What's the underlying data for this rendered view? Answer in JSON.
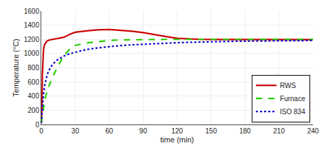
{
  "chart_data": {
    "type": "line",
    "xlabel": "time (min)",
    "ylabel": "Temperature (°C)",
    "xlim": [
      0,
      240
    ],
    "ylim": [
      0,
      1600
    ],
    "xticks": [
      0,
      30,
      60,
      90,
      120,
      150,
      180,
      210,
      240
    ],
    "yticks": [
      0,
      200,
      400,
      600,
      800,
      1000,
      1200,
      1400,
      1600
    ],
    "grid": true,
    "legend": "lower right",
    "series": [
      {
        "name": "RWS",
        "color": "#cc0000",
        "line_style": "solid",
        "x": [
          0,
          0.5,
          1,
          1.5,
          2,
          3,
          4,
          5,
          7,
          10,
          15,
          20,
          25,
          30,
          40,
          50,
          60,
          70,
          80,
          90,
          100,
          110,
          120,
          130,
          140,
          150,
          160,
          180,
          210,
          240
        ],
        "values": [
          20,
          200,
          700,
          950,
          1060,
          1130,
          1160,
          1175,
          1190,
          1200,
          1210,
          1230,
          1270,
          1300,
          1320,
          1335,
          1340,
          1330,
          1315,
          1295,
          1265,
          1240,
          1215,
          1205,
          1200,
          1198,
          1197,
          1196,
          1196,
          1196
        ]
      },
      {
        "name": "Furnace",
        "color": "#22cc00",
        "line_style": "dashed",
        "x": [
          0,
          0.5,
          1,
          2,
          3,
          4,
          5,
          6,
          8,
          10,
          15,
          20,
          25,
          30,
          40,
          50,
          60,
          70,
          80,
          90,
          100,
          110,
          120,
          150,
          180,
          210,
          240
        ],
        "values": [
          20,
          80,
          150,
          260,
          340,
          400,
          460,
          510,
          590,
          670,
          830,
          970,
          1060,
          1115,
          1150,
          1170,
          1185,
          1192,
          1196,
          1198,
          1199,
          1200,
          1200,
          1200,
          1200,
          1200,
          1200
        ]
      },
      {
        "name": "ISO 834",
        "color": "#0000cc",
        "line_style": "dotted",
        "x": [
          0,
          0.5,
          1,
          2,
          3,
          4,
          5,
          6,
          7,
          8,
          10,
          12,
          15,
          20,
          25,
          30,
          40,
          50,
          60,
          70,
          80,
          90,
          100,
          110,
          120,
          130,
          140,
          150,
          160,
          170,
          180,
          200,
          220,
          240
        ],
        "values": [
          20,
          130,
          260,
          430,
          545,
          625,
          685,
          735,
          770,
          800,
          845,
          880,
          920,
          965,
          998,
          1020,
          1058,
          1080,
          1098,
          1113,
          1123,
          1132,
          1140,
          1147,
          1153,
          1158,
          1163,
          1167,
          1170,
          1173,
          1175,
          1179,
          1182,
          1184
        ]
      }
    ]
  }
}
